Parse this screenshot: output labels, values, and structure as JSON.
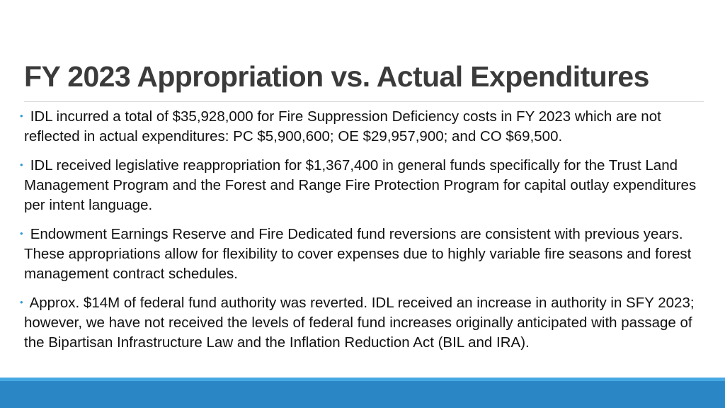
{
  "slide": {
    "title": "FY 2023 Appropriation vs. Actual Expenditures",
    "bullets": [
      "IDL incurred a total of $35,928,000 for Fire Suppression Deficiency costs in FY 2023 which are not reflected in actual expenditures: PC $5,900,600; OE $29,957,900; and CO $69,500.",
      "IDL received legislative reappropriation for $1,367,400 in general funds specifically for the Trust Land Management Program and the Forest and Range Fire Protection Program for capital outlay expenditures per intent language.",
      "Endowment Earnings Reserve and Fire Dedicated fund reversions are consistent with previous years. These appropriations allow for flexibility to cover expenses due to highly variable fire seasons and forest management contract schedules.",
      "Approx. $14M of federal fund authority was reverted. IDL received an increase in authority in SFY 2023; however, we have not received the levels of federal fund increases originally anticipated with passage of the Bipartisan Infrastructure Law and the Inflation Reduction Act (BIL and IRA)."
    ]
  },
  "colors": {
    "title": "#3b3b3b",
    "bullet_marker": "#2e9bd6",
    "footer_bar": "#2a86c5"
  }
}
